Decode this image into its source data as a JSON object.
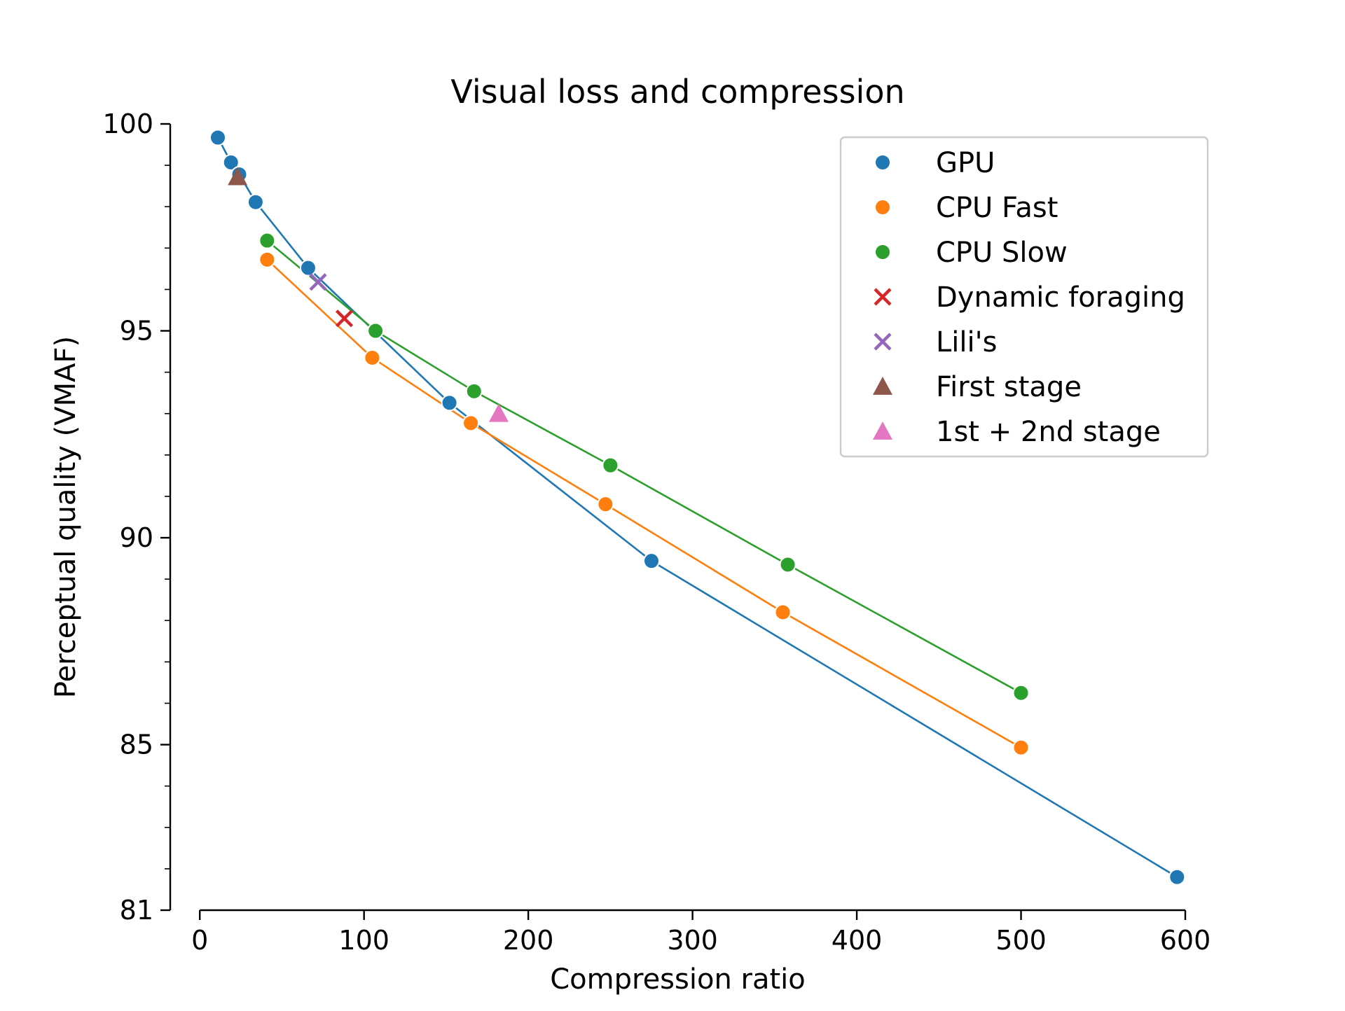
{
  "chart_data": {
    "type": "scatter",
    "title": "Visual loss and compression",
    "xlabel": "Compression ratio",
    "ylabel": "Perceptual quality (VMAF)",
    "xlim": [
      -18,
      600
    ],
    "ylim": [
      81,
      100
    ],
    "xticks": [
      0,
      100,
      200,
      300,
      400,
      500,
      600
    ],
    "yticks": [
      81,
      85,
      90,
      95,
      100
    ],
    "yminor_ticks": [
      82,
      83,
      84,
      86,
      87,
      88,
      89,
      91,
      92,
      93,
      94,
      96,
      97,
      98,
      99
    ],
    "grid": false,
    "legend_position": "top-right",
    "series": [
      {
        "name": "GPU",
        "marker": "circle",
        "color": "#1f77b4",
        "line": true,
        "points": [
          [
            11,
            99.67
          ],
          [
            19,
            99.07
          ],
          [
            24,
            98.78
          ],
          [
            34,
            98.11
          ],
          [
            66,
            96.52
          ],
          [
            152,
            93.26
          ],
          [
            275,
            89.44
          ],
          [
            595,
            81.8
          ]
        ]
      },
      {
        "name": "CPU Fast",
        "marker": "circle",
        "color": "#ff7f0e",
        "line": true,
        "points": [
          [
            41,
            96.72
          ],
          [
            105,
            94.35
          ],
          [
            165,
            92.77
          ],
          [
            247,
            90.81
          ],
          [
            355,
            88.2
          ],
          [
            500,
            84.93
          ]
        ]
      },
      {
        "name": "CPU Slow",
        "marker": "circle",
        "color": "#2ca02c",
        "line": true,
        "points": [
          [
            41,
            97.18
          ],
          [
            107,
            95.0
          ],
          [
            167,
            93.54
          ],
          [
            250,
            91.75
          ],
          [
            358,
            89.35
          ],
          [
            500,
            86.25
          ]
        ]
      },
      {
        "name": "Dynamic foraging",
        "marker": "x",
        "color": "#d62728",
        "line": false,
        "points": [
          [
            88,
            95.3
          ]
        ]
      },
      {
        "name": "Lili's",
        "marker": "x",
        "color": "#9467bd",
        "line": false,
        "points": [
          [
            72,
            96.18
          ]
        ]
      },
      {
        "name": "First stage",
        "marker": "triangle",
        "color": "#8c564b",
        "line": false,
        "points": [
          [
            23,
            98.72
          ]
        ]
      },
      {
        "name": "1st + 2nd stage",
        "marker": "triangle",
        "color": "#e377c2",
        "line": false,
        "points": [
          [
            182,
            93.0
          ]
        ]
      }
    ]
  }
}
